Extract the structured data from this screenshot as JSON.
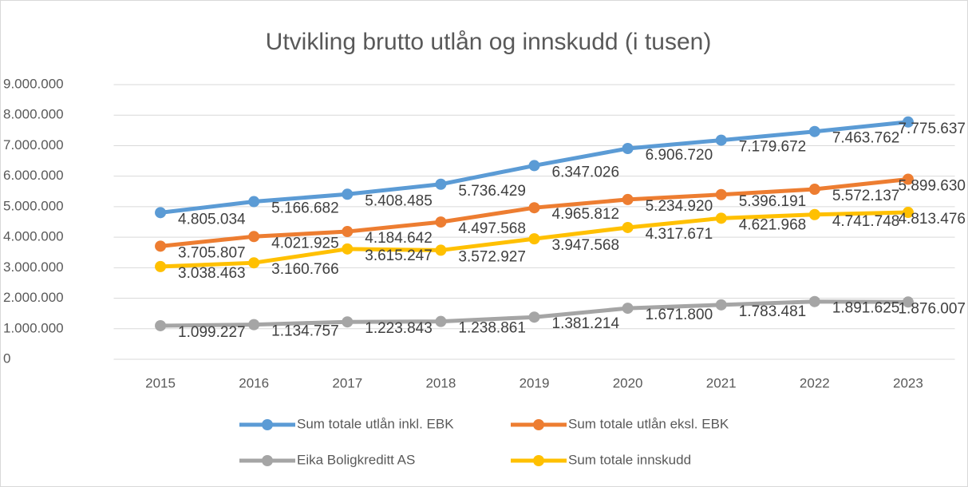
{
  "chart_data": {
    "type": "line",
    "title": "Utvikling brutto utlån og innskudd (i tusen)",
    "categories": [
      "2015",
      "2016",
      "2017",
      "2018",
      "2019",
      "2020",
      "2021",
      "2022",
      "2023"
    ],
    "ylim": [
      0,
      9000000
    ],
    "yticks": [
      0,
      {
        "value": 1000000,
        "label": "1.000.000"
      },
      {
        "value": 2000000,
        "label": "2.000.000"
      },
      {
        "value": 3000000,
        "label": "3.000.000"
      },
      {
        "value": 4000000,
        "label": "4.000.000"
      },
      {
        "value": 5000000,
        "label": "5.000.000"
      },
      {
        "value": 6000000,
        "label": "6.000.000"
      },
      {
        "value": 7000000,
        "label": "7.000.000"
      },
      {
        "value": 8000000,
        "label": "8.000.000"
      },
      {
        "value": 9000000,
        "label": "9.000.000"
      }
    ],
    "grid": true,
    "legend": "bottom",
    "series": [
      {
        "name": "Sum totale utlån inkl. EBK",
        "color": "#5b9bd5",
        "values": [
          4805034,
          5166682,
          5408485,
          5736429,
          6347026,
          6906720,
          7179672,
          7463762,
          7775637
        ],
        "value_labels": [
          "4.805.034",
          "5.166.682",
          "5.408.485",
          "5.736.429",
          "6.347.026",
          "6.906.720",
          "7.179.672",
          "7.463.762",
          "7.775.637"
        ]
      },
      {
        "name": "Sum totale utlån eksl. EBK",
        "color": "#ed7d31",
        "values": [
          3705807,
          4021925,
          4184642,
          4497568,
          4965812,
          5234920,
          5396191,
          5572137,
          5899630
        ],
        "value_labels": [
          "3.705.807",
          "4.021.925",
          "4.184.642",
          "4.497.568",
          "4.965.812",
          "5.234.920",
          "5.396.191",
          "5.572.137",
          "5.899.630"
        ]
      },
      {
        "name": "Eika Boligkreditt AS",
        "color": "#a5a5a5",
        "values": [
          1099227,
          1134757,
          1223843,
          1238861,
          1381214,
          1671800,
          1783481,
          1891625,
          1876007
        ],
        "value_labels": [
          "1.099.227",
          "1.134.757",
          "1.223.843",
          "1.238.861",
          "1.381.214",
          "1.671.800",
          "1.783.481",
          "1.891.625",
          "1.876.007"
        ]
      },
      {
        "name": "Sum totale innskudd",
        "color": "#ffc000",
        "values": [
          3038463,
          3160766,
          3615247,
          3572927,
          3947568,
          4317671,
          4621968,
          4741748,
          4813476
        ],
        "value_labels": [
          "3.038.463",
          "3.160.766",
          "3.615.247",
          "3.572.927",
          "3.947.568",
          "4.317.671",
          "4.621.968",
          "4.741.748",
          "4.813.476"
        ]
      }
    ]
  }
}
